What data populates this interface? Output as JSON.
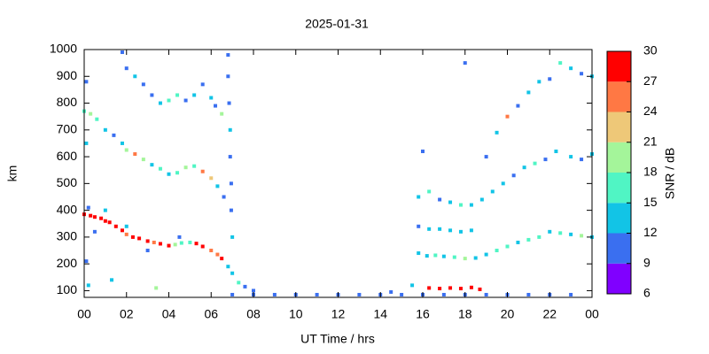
{
  "chart_data": {
    "type": "scatter",
    "title": "2025-01-31",
    "x_label": "UT Time / hrs",
    "y_label": "km",
    "x": [
      0.0,
      0.3,
      0.5,
      0.8,
      1.0,
      1.2,
      1.5,
      1.8,
      2.0,
      2.3,
      2.6,
      3.0,
      3.3,
      3.6,
      4.0,
      4.3,
      4.6,
      5.0,
      5.3,
      5.6,
      6.0,
      6.3,
      6.5,
      6.8,
      7.0,
      7.3,
      7.6,
      8.0,
      0.2,
      1.0,
      2.0,
      0.5,
      4.5,
      3.0,
      0.0,
      0.3,
      0.6,
      1.0,
      1.4,
      1.8,
      2.0,
      2.4,
      2.8,
      3.2,
      3.6,
      4.0,
      4.4,
      4.8,
      5.2,
      5.6,
      6.0,
      6.3,
      6.6,
      1.8,
      2.0,
      2.4,
      2.8,
      3.2,
      3.6,
      4.0,
      4.4,
      4.8,
      5.2,
      5.6,
      6.0,
      6.2,
      6.5,
      6.8,
      6.8,
      6.85,
      6.9,
      6.9,
      6.95,
      6.95,
      7.0,
      0.1,
      0.1,
      0.2,
      1.3,
      3.4,
      0.1,
      7,
      8,
      9,
      10,
      11,
      12,
      13,
      14,
      15,
      16,
      17,
      18,
      19,
      20,
      21,
      22,
      23,
      14.5,
      15.5,
      16.3,
      16.8,
      17.3,
      17.8,
      18.3,
      18.7,
      15.8,
      16.2,
      16.6,
      17.0,
      17.5,
      18.0,
      18.5,
      19.0,
      19.5,
      20.0,
      20.5,
      21.0,
      21.5,
      22.0,
      22.5,
      23.0,
      23.5,
      24.0,
      15.8,
      16.3,
      16.8,
      17.3,
      17.8,
      18.3,
      15.8,
      16.3,
      16.8,
      17.3,
      17.8,
      18.3,
      18.8,
      19.3,
      19.8,
      20.3,
      20.8,
      21.3,
      21.8,
      22.3,
      23.0,
      23.5,
      24.0,
      19.0,
      19.5,
      20.0,
      20.5,
      21.0,
      21.5,
      22.0,
      22.5,
      23.0,
      23.5,
      24.0,
      18.0,
      16.0
    ],
    "values": [
      385,
      380,
      375,
      370,
      360,
      355,
      340,
      325,
      310,
      300,
      295,
      285,
      280,
      275,
      268,
      272,
      278,
      280,
      276,
      265,
      250,
      235,
      220,
      190,
      165,
      130,
      115,
      100,
      410,
      400,
      340,
      320,
      300,
      250,
      770,
      760,
      740,
      700,
      680,
      650,
      625,
      610,
      590,
      570,
      555,
      535,
      540,
      560,
      565,
      545,
      520,
      490,
      450,
      990,
      930,
      900,
      870,
      830,
      800,
      810,
      830,
      810,
      830,
      870,
      820,
      790,
      760,
      980,
      900,
      800,
      700,
      600,
      500,
      400,
      300,
      880,
      650,
      120,
      140,
      110,
      210,
      85,
      85,
      85,
      85,
      85,
      85,
      85,
      85,
      85,
      85,
      85,
      85,
      85,
      85,
      85,
      85,
      85,
      95,
      120,
      110,
      108,
      110,
      108,
      112,
      105,
      240,
      230,
      232,
      228,
      225,
      220,
      222,
      235,
      250,
      265,
      280,
      290,
      300,
      320,
      315,
      310,
      305,
      300,
      340,
      330,
      330,
      325,
      320,
      325,
      450,
      470,
      440,
      430,
      420,
      420,
      440,
      470,
      500,
      530,
      560,
      575,
      590,
      620,
      600,
      590,
      610,
      600,
      690,
      750,
      790,
      840,
      880,
      890,
      950,
      930,
      910,
      900,
      950,
      620
    ],
    "snr": [
      27,
      29,
      28,
      29,
      28,
      27,
      28,
      29,
      26,
      28,
      27,
      28,
      25,
      27,
      28,
      19,
      16,
      15,
      27,
      28,
      26,
      24,
      28,
      14,
      12,
      15,
      10,
      10,
      10,
      12,
      14,
      10,
      11,
      10,
      16,
      19,
      16,
      13,
      10,
      12,
      20,
      24,
      18,
      13,
      15,
      14,
      16,
      18,
      15,
      24,
      22,
      12,
      10,
      10,
      11,
      12,
      10,
      11,
      12,
      16,
      15,
      11,
      12,
      10,
      13,
      11,
      18,
      10,
      11,
      10,
      12,
      10,
      11,
      10,
      13,
      10,
      12,
      12,
      14,
      18,
      10,
      10,
      10,
      10,
      10,
      10,
      10,
      10,
      10,
      11,
      10,
      10,
      10,
      10,
      10,
      10,
      10,
      10,
      10,
      12,
      27,
      29,
      28,
      27,
      29,
      28,
      14,
      12,
      16,
      13,
      15,
      19,
      12,
      14,
      16,
      15,
      12,
      15,
      17,
      14,
      16,
      12,
      18,
      14,
      10,
      14,
      12,
      13,
      14,
      12,
      12,
      15,
      11,
      13,
      15,
      12,
      14,
      12,
      13,
      11,
      12,
      16,
      11,
      12,
      13,
      10,
      12,
      11,
      13,
      25,
      11,
      12,
      14,
      11,
      15,
      12,
      11,
      13,
      10,
      10
    ],
    "xlim": [
      0,
      24
    ],
    "ylim": [
      75,
      1000
    ],
    "xticks": [
      {
        "value": 0,
        "label": "00"
      },
      {
        "value": 2,
        "label": "02"
      },
      {
        "value": 4,
        "label": "04"
      },
      {
        "value": 6,
        "label": "06"
      },
      {
        "value": 8,
        "label": "08"
      },
      10,
      12,
      14,
      16,
      18,
      20,
      22,
      {
        "value": 24,
        "label": "00"
      }
    ],
    "yticks": [
      100,
      200,
      300,
      400,
      500,
      600,
      700,
      800,
      900,
      1000
    ],
    "colorbar": {
      "label": "SNR / dB",
      "lim": [
        6,
        30
      ],
      "ticks": [
        6,
        9,
        12,
        15,
        18,
        21,
        24,
        27,
        30
      ],
      "colors": [
        "#8000ff",
        "#3a6ff0",
        "#12c4e6",
        "#50f5c4",
        "#a4f59a",
        "#eec878",
        "#ff7844",
        "#ff0000"
      ]
    }
  }
}
